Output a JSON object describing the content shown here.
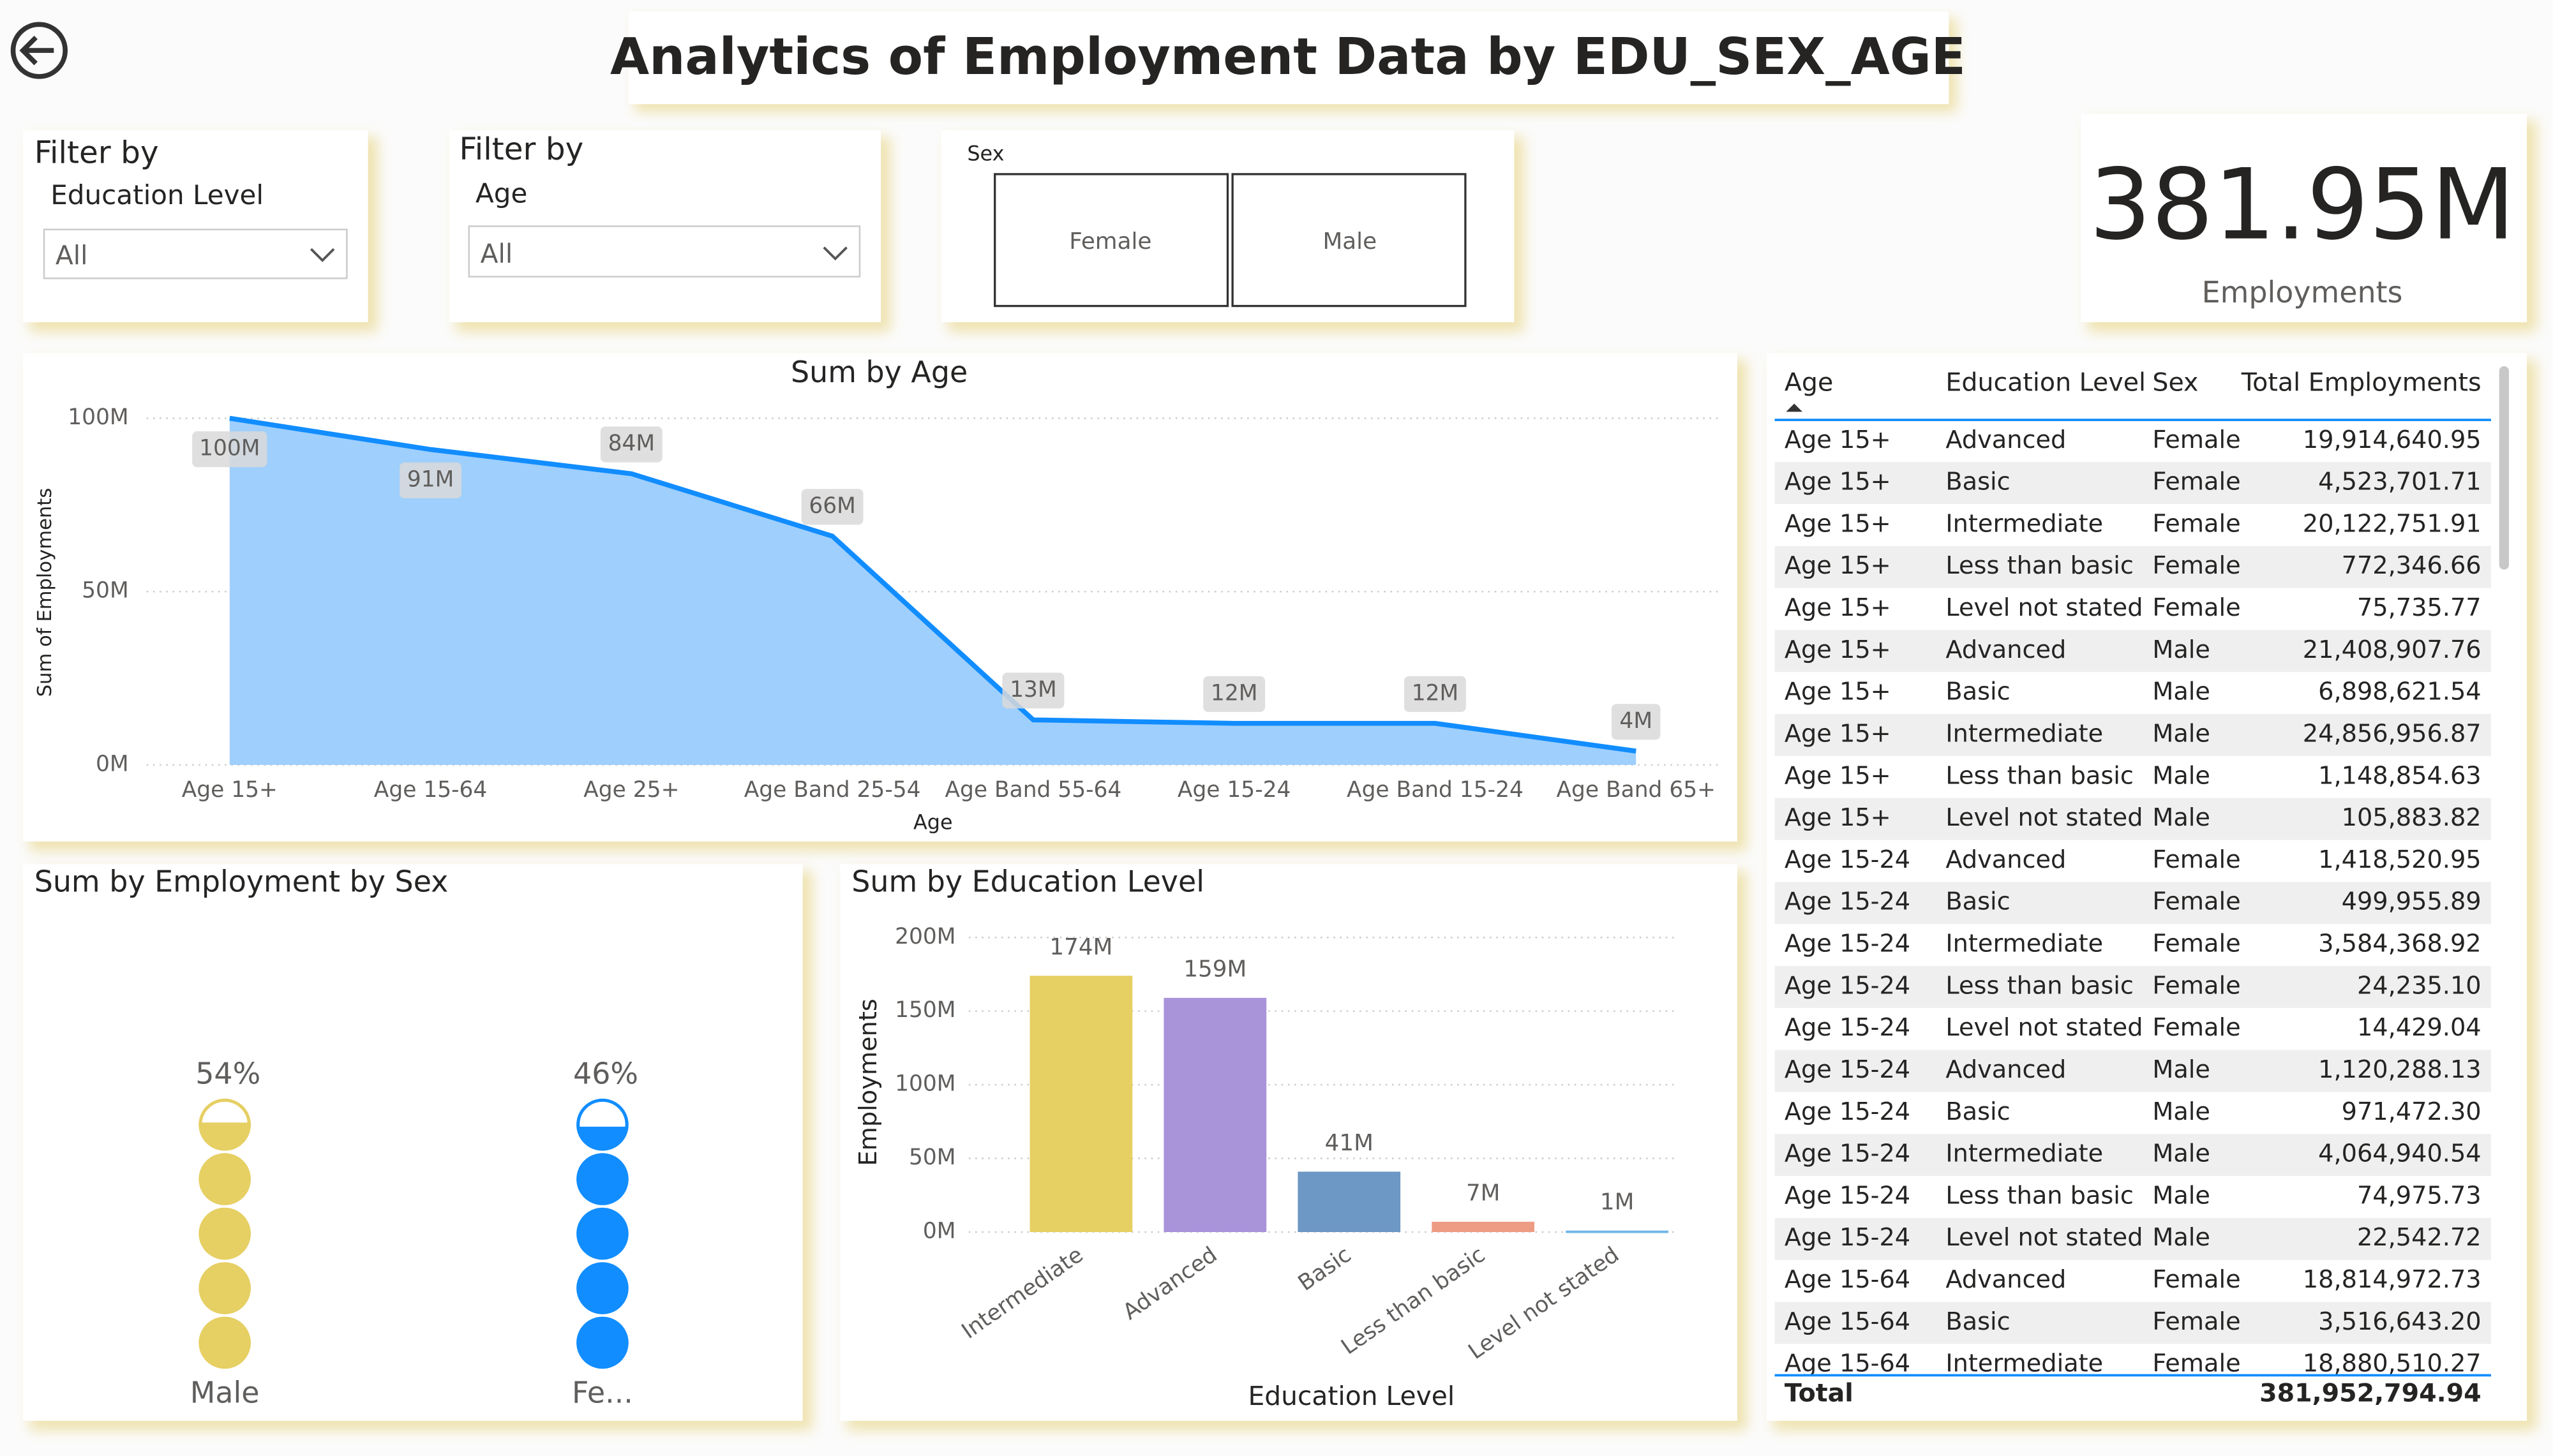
{
  "title": "Analytics of Employment Data by EDU_SEX_AGE",
  "filters": [
    {
      "heading": "Filter by",
      "field": "Education Level",
      "selected": "All"
    },
    {
      "heading": "Filter by",
      "field": "Age",
      "selected": "All"
    }
  ],
  "sex_slicer": {
    "label": "Sex",
    "options": [
      "Female",
      "Male"
    ]
  },
  "kpi": {
    "value": "381.95M",
    "label": "Employments"
  },
  "chart_data": [
    {
      "type": "area",
      "title": "Sum by Age",
      "x_label": "Age",
      "y_label": "Sum of Employments",
      "categories": [
        "Age 15+",
        "Age 15-64",
        "Age 25+",
        "Age Band 25-54",
        "Age Band 55-64",
        "Age 15-24",
        "Age Band 15-24",
        "Age Band 65+"
      ],
      "values": [
        100,
        91,
        84,
        66,
        13,
        12,
        12,
        4
      ],
      "value_labels": [
        "100M",
        "91M",
        "84M",
        "66M",
        "13M",
        "12M",
        "12M",
        "4M"
      ],
      "color": "#118dff",
      "fill": "#9fcffc",
      "ylim": [
        0,
        100
      ],
      "yticks": [
        {
          "value": 0,
          "label": "0M"
        },
        {
          "value": 50,
          "label": "50M"
        },
        {
          "value": 100,
          "label": "100M"
        }
      ],
      "grid": true
    },
    {
      "type": "pictogram",
      "title": "Sum by Employment by Sex",
      "categories": [
        "Male",
        "Fe..."
      ],
      "values": [
        54,
        46
      ],
      "value_labels": [
        "54%",
        "46%"
      ],
      "colors": [
        "#e6cf63",
        "#118dff"
      ]
    },
    {
      "type": "bar",
      "title": "Sum by Education Level",
      "x_label": "Education Level",
      "y_label": "Employments",
      "categories": [
        "Intermediate",
        "Advanced",
        "Basic",
        "Less than basic",
        "Level not stated"
      ],
      "values": [
        174,
        159,
        41,
        7,
        1
      ],
      "value_labels": [
        "174M",
        "159M",
        "41M",
        "7M",
        "1M"
      ],
      "colors": [
        "#e6cf63",
        "#a993d9",
        "#6d97c4",
        "#ee9b83",
        "#6fb6e6"
      ],
      "ylim": [
        0,
        200
      ],
      "yticks": [
        {
          "value": 0,
          "label": "0M"
        },
        {
          "value": 50,
          "label": "50M"
        },
        {
          "value": 100,
          "label": "100M"
        },
        {
          "value": 150,
          "label": "150M"
        },
        {
          "value": 200,
          "label": "200M"
        }
      ],
      "grid": true
    }
  ],
  "table": {
    "columns": [
      "Age",
      "Education Level",
      "Sex",
      "Total Employments"
    ],
    "rows": [
      [
        "Age 15+",
        "Advanced",
        "Female",
        "19,914,640.95"
      ],
      [
        "Age 15+",
        "Basic",
        "Female",
        "4,523,701.71"
      ],
      [
        "Age 15+",
        "Intermediate",
        "Female",
        "20,122,751.91"
      ],
      [
        "Age 15+",
        "Less than basic",
        "Female",
        "772,346.66"
      ],
      [
        "Age 15+",
        "Level not stated",
        "Female",
        "75,735.77"
      ],
      [
        "Age 15+",
        "Advanced",
        "Male",
        "21,408,907.76"
      ],
      [
        "Age 15+",
        "Basic",
        "Male",
        "6,898,621.54"
      ],
      [
        "Age 15+",
        "Intermediate",
        "Male",
        "24,856,956.87"
      ],
      [
        "Age 15+",
        "Less than basic",
        "Male",
        "1,148,854.63"
      ],
      [
        "Age 15+",
        "Level not stated",
        "Male",
        "105,883.82"
      ],
      [
        "Age 15-24",
        "Advanced",
        "Female",
        "1,418,520.95"
      ],
      [
        "Age 15-24",
        "Basic",
        "Female",
        "499,955.89"
      ],
      [
        "Age 15-24",
        "Intermediate",
        "Female",
        "3,584,368.92"
      ],
      [
        "Age 15-24",
        "Less than basic",
        "Female",
        "24,235.10"
      ],
      [
        "Age 15-24",
        "Level not stated",
        "Female",
        "14,429.04"
      ],
      [
        "Age 15-24",
        "Advanced",
        "Male",
        "1,120,288.13"
      ],
      [
        "Age 15-24",
        "Basic",
        "Male",
        "971,472.30"
      ],
      [
        "Age 15-24",
        "Intermediate",
        "Male",
        "4,064,940.54"
      ],
      [
        "Age 15-24",
        "Less than basic",
        "Male",
        "74,975.73"
      ],
      [
        "Age 15-24",
        "Level not stated",
        "Male",
        "22,542.72"
      ],
      [
        "Age 15-64",
        "Advanced",
        "Female",
        "18,814,972.73"
      ],
      [
        "Age 15-64",
        "Basic",
        "Female",
        "3,516,643.20"
      ],
      [
        "Age 15-64",
        "Intermediate",
        "Female",
        "18,880,510.27"
      ]
    ],
    "total": {
      "label": "Total",
      "value": "381,952,794.94"
    }
  }
}
